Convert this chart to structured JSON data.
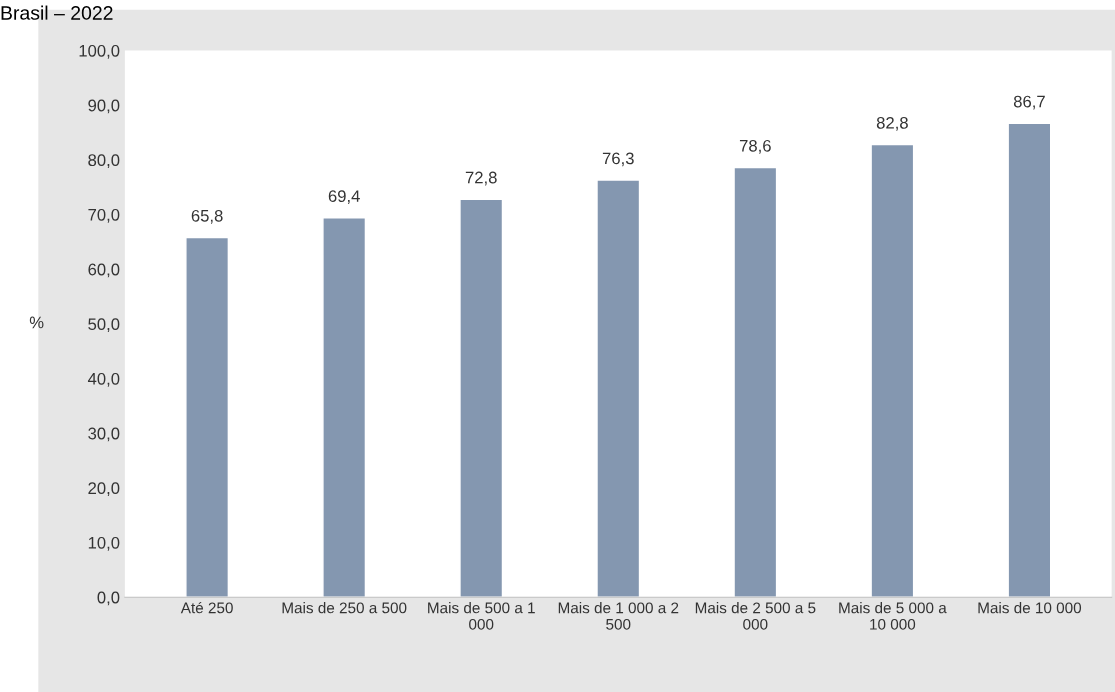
{
  "chart_data": {
    "type": "bar",
    "title": "Brasil – 2022",
    "ylabel": "%",
    "categories": [
      "Até 250",
      "Mais de 250 a 500",
      "Mais de 500 a 1 000",
      "Mais de 1 000 a 2 500",
      "Mais de 2 500 a 5 000",
      "Mais de 5 000 a 10 000",
      "Mais de 10 000"
    ],
    "values": [
      65.8,
      69.4,
      72.8,
      76.3,
      78.6,
      82.8,
      86.7
    ],
    "value_labels": [
      "65,8",
      "69,4",
      "72,8",
      "76,3",
      "78,6",
      "82,8",
      "86,7"
    ],
    "color": "#8497b0",
    "ylim": [
      0,
      100
    ],
    "yticks": [
      {
        "value": 0,
        "label": "0,0"
      },
      {
        "value": 10,
        "label": "10,0"
      },
      {
        "value": 20,
        "label": "20,0"
      },
      {
        "value": 30,
        "label": "30,0"
      },
      {
        "value": 40,
        "label": "40,0"
      },
      {
        "value": 50,
        "label": "50,0"
      },
      {
        "value": 60,
        "label": "60,0"
      },
      {
        "value": 70,
        "label": "70,0"
      },
      {
        "value": 80,
        "label": "80,0"
      },
      {
        "value": 90,
        "label": "90,0"
      },
      {
        "value": 100,
        "label": "100,0"
      }
    ],
    "grid": false,
    "legend": false
  }
}
